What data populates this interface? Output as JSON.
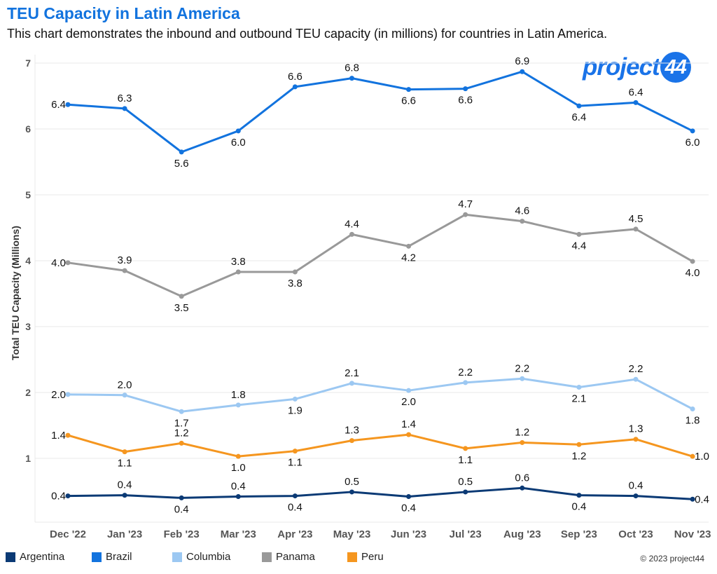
{
  "title": "TEU Capacity in Latin America",
  "subtitle": "This chart demonstrates the inbound and outbound TEU capacity (in millions) for countries in Latin America.",
  "logo": {
    "text": "project",
    "badge": "44"
  },
  "copyright": "© 2023 project44",
  "chart_data": {
    "type": "line",
    "title": "TEU Capacity in Latin America",
    "xlabel": "",
    "ylabel": "Total TEU Capacity (Millions)",
    "ylim": [
      0.3,
      7
    ],
    "yticks": [
      1,
      2,
      3,
      4,
      5,
      6,
      7
    ],
    "grid": true,
    "legend": "bottom",
    "categories": [
      "Dec '22",
      "Jan '23",
      "Feb '23",
      "Mar '23",
      "Apr '23",
      "May '23",
      "Jun '23",
      "Jul '23",
      "Aug '23",
      "Sep '23",
      "Oct '23",
      "Nov '23"
    ],
    "series": [
      {
        "name": "Argentina",
        "color": "#0b3a75",
        "values": [
          0.43,
          0.44,
          0.4,
          0.42,
          0.43,
          0.49,
          0.42,
          0.49,
          0.55,
          0.44,
          0.43,
          0.38
        ],
        "labels": [
          "0.4",
          "0.4",
          "0.4",
          "0.4",
          "0.4",
          "0.5",
          "0.4",
          "0.5",
          "0.6",
          "0.4",
          "0.4",
          "0.4"
        ],
        "label_pos": [
          "left",
          "above",
          "below",
          "above",
          "below",
          "above",
          "below",
          "above",
          "above",
          "below",
          "above",
          "right"
        ]
      },
      {
        "name": "Brazil",
        "color": "#1273de",
        "values": [
          6.37,
          6.31,
          5.65,
          5.97,
          6.64,
          6.77,
          6.6,
          6.61,
          6.87,
          6.35,
          6.4,
          5.97
        ],
        "labels": [
          "6.4",
          "6.3",
          "5.6",
          "6.0",
          "6.6",
          "6.8",
          "6.6",
          "6.6",
          "6.9",
          "6.4",
          "6.4",
          "6.0"
        ],
        "label_pos": [
          "left",
          "above",
          "below",
          "below",
          "above",
          "above",
          "below",
          "below",
          "above",
          "below",
          "above",
          "below"
        ]
      },
      {
        "name": "Columbia",
        "color": "#9cc8f2",
        "values": [
          1.97,
          1.96,
          1.71,
          1.81,
          1.9,
          2.14,
          2.03,
          2.15,
          2.21,
          2.08,
          2.2,
          1.75
        ],
        "labels": [
          "2.0",
          "2.0",
          "1.7",
          "1.8",
          "1.9",
          "2.1",
          "2.0",
          "2.2",
          "2.2",
          "2.1",
          "2.2",
          "1.8"
        ],
        "label_pos": [
          "left",
          "above",
          "below",
          "above",
          "below",
          "above",
          "below",
          "above",
          "above",
          "below",
          "above",
          "below"
        ]
      },
      {
        "name": "Panama",
        "color": "#999999",
        "values": [
          3.97,
          3.85,
          3.46,
          3.83,
          3.83,
          4.4,
          4.22,
          4.7,
          4.6,
          4.4,
          4.48,
          3.99
        ],
        "labels": [
          "4.0",
          "3.9",
          "3.5",
          "3.8",
          "3.8",
          "4.4",
          "4.2",
          "4.7",
          "4.6",
          "4.4",
          "4.5",
          "4.0"
        ],
        "label_pos": [
          "left",
          "above",
          "below",
          "above",
          "below",
          "above",
          "below",
          "above",
          "above",
          "below",
          "above",
          "below"
        ]
      },
      {
        "name": "Peru",
        "color": "#f5961f",
        "values": [
          1.35,
          1.1,
          1.23,
          1.03,
          1.11,
          1.27,
          1.36,
          1.15,
          1.24,
          1.21,
          1.29,
          1.03
        ],
        "labels": [
          "1.4",
          "1.1",
          "1.2",
          "1.0",
          "1.1",
          "1.3",
          "1.4",
          "1.1",
          "1.2",
          "1.2",
          "1.3",
          "1.0"
        ],
        "label_pos": [
          "left",
          "below",
          "above",
          "below",
          "below",
          "above",
          "above",
          "below",
          "above",
          "below",
          "above",
          "right"
        ]
      }
    ]
  }
}
